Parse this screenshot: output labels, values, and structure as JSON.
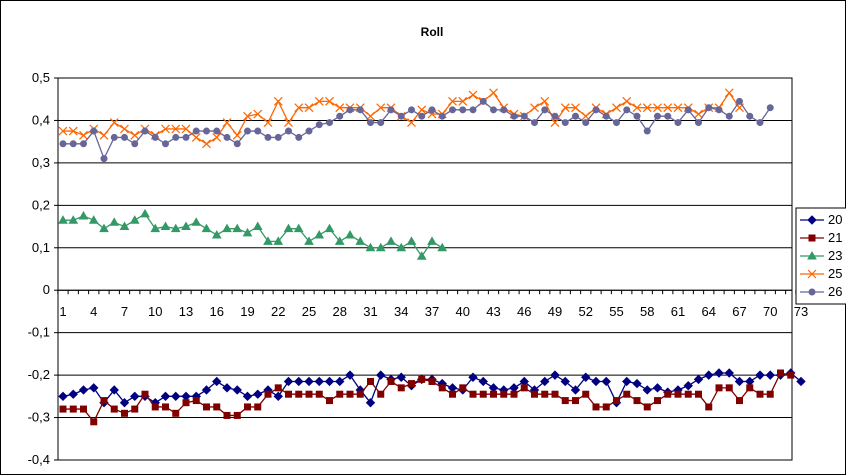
{
  "chart_data": {
    "type": "line",
    "title": "Roll",
    "xlabel": "",
    "ylabel": "",
    "ylim": [
      -0.4,
      0.5
    ],
    "y_ticks": [
      "0,5",
      "0,4",
      "0,3",
      "0,2",
      "0,1",
      "0",
      "-0,1",
      "-0,2",
      "-0,3",
      "-0,4"
    ],
    "y_tick_values": [
      0.5,
      0.4,
      0.3,
      0.2,
      0.1,
      0,
      -0.1,
      -0.2,
      -0.3,
      -0.4
    ],
    "x_tick_labels": [
      "1",
      "4",
      "7",
      "10",
      "13",
      "16",
      "19",
      "22",
      "25",
      "28",
      "31",
      "34",
      "37",
      "40",
      "43",
      "46",
      "49",
      "52",
      "55",
      "58",
      "61",
      "64",
      "67",
      "70",
      "73"
    ],
    "x_range": [
      1,
      73
    ],
    "grid": "horizontal",
    "legend_position": "right",
    "series": [
      {
        "name": "20",
        "color": "#000080",
        "marker": "diamond",
        "values": [
          -0.25,
          -0.245,
          -0.235,
          -0.23,
          -0.265,
          -0.235,
          -0.265,
          -0.25,
          -0.25,
          -0.265,
          -0.25,
          -0.25,
          -0.25,
          -0.25,
          -0.235,
          -0.215,
          -0.23,
          -0.235,
          -0.25,
          -0.245,
          -0.235,
          -0.25,
          -0.215,
          -0.215,
          -0.215,
          -0.215,
          -0.215,
          -0.215,
          -0.2,
          -0.235,
          -0.265,
          -0.2,
          -0.21,
          -0.205,
          -0.225,
          -0.21,
          -0.21,
          -0.22,
          -0.23,
          -0.235,
          -0.205,
          -0.215,
          -0.23,
          -0.235,
          -0.23,
          -0.215,
          -0.235,
          -0.215,
          -0.2,
          -0.215,
          -0.235,
          -0.205,
          -0.215,
          -0.215,
          -0.265,
          -0.215,
          -0.22,
          -0.235,
          -0.23,
          -0.24,
          -0.235,
          -0.225,
          -0.21,
          -0.2,
          -0.195,
          -0.195,
          -0.215,
          -0.215,
          -0.2,
          -0.2,
          -0.2,
          -0.195,
          -0.215
        ]
      },
      {
        "name": "21",
        "color": "#800000",
        "marker": "square",
        "values": [
          -0.28,
          -0.28,
          -0.28,
          -0.31,
          -0.26,
          -0.28,
          -0.29,
          -0.28,
          -0.245,
          -0.275,
          -0.275,
          -0.29,
          -0.265,
          -0.26,
          -0.275,
          -0.275,
          -0.295,
          -0.295,
          -0.275,
          -0.275,
          -0.245,
          -0.23,
          -0.245,
          -0.245,
          -0.245,
          -0.245,
          -0.26,
          -0.245,
          -0.245,
          -0.245,
          -0.215,
          -0.245,
          -0.215,
          -0.23,
          -0.22,
          -0.21,
          -0.215,
          -0.23,
          -0.245,
          -0.23,
          -0.245,
          -0.245,
          -0.245,
          -0.245,
          -0.245,
          -0.23,
          -0.245,
          -0.245,
          -0.245,
          -0.26,
          -0.26,
          -0.245,
          -0.275,
          -0.275,
          -0.26,
          -0.245,
          -0.26,
          -0.275,
          -0.26,
          -0.245,
          -0.245,
          -0.245,
          -0.245,
          -0.275,
          -0.23,
          -0.23,
          -0.26,
          -0.23,
          -0.245,
          -0.245,
          -0.195,
          -0.2
        ]
      },
      {
        "name": "23",
        "color": "#339966",
        "marker": "triangle",
        "values": [
          0.165,
          0.165,
          0.175,
          0.165,
          0.145,
          0.16,
          0.15,
          0.165,
          0.18,
          0.145,
          0.15,
          0.145,
          0.15,
          0.16,
          0.145,
          0.13,
          0.145,
          0.145,
          0.135,
          0.15,
          0.115,
          0.115,
          0.145,
          0.145,
          0.115,
          0.13,
          0.145,
          0.115,
          0.13,
          0.115,
          0.1,
          0.1,
          0.115,
          0.1,
          0.115,
          0.08,
          0.115,
          0.1
        ]
      },
      {
        "name": "25",
        "color": "#FF6600",
        "marker": "x",
        "values": [
          0.375,
          0.375,
          0.365,
          0.38,
          0.365,
          0.395,
          0.38,
          0.365,
          0.38,
          0.365,
          0.38,
          0.38,
          0.38,
          0.36,
          0.345,
          0.36,
          0.395,
          0.365,
          0.41,
          0.415,
          0.395,
          0.445,
          0.395,
          0.43,
          0.43,
          0.445,
          0.445,
          0.43,
          0.43,
          0.43,
          0.41,
          0.43,
          0.43,
          0.41,
          0.395,
          0.425,
          0.415,
          0.415,
          0.445,
          0.445,
          0.46,
          0.445,
          0.465,
          0.43,
          0.415,
          0.41,
          0.43,
          0.445,
          0.395,
          0.43,
          0.43,
          0.41,
          0.43,
          0.415,
          0.43,
          0.445,
          0.43,
          0.43,
          0.43,
          0.43,
          0.43,
          0.43,
          0.415,
          0.43,
          0.43,
          0.465,
          0.43
        ]
      },
      {
        "name": "26",
        "color": "#666699",
        "marker": "circle",
        "values": [
          0.345,
          0.345,
          0.345,
          0.375,
          0.31,
          0.36,
          0.36,
          0.345,
          0.375,
          0.36,
          0.345,
          0.36,
          0.36,
          0.375,
          0.375,
          0.375,
          0.36,
          0.345,
          0.375,
          0.375,
          0.36,
          0.36,
          0.375,
          0.36,
          0.375,
          0.39,
          0.395,
          0.41,
          0.425,
          0.425,
          0.395,
          0.395,
          0.425,
          0.41,
          0.425,
          0.41,
          0.425,
          0.41,
          0.425,
          0.425,
          0.425,
          0.445,
          0.425,
          0.425,
          0.41,
          0.41,
          0.395,
          0.425,
          0.41,
          0.395,
          0.41,
          0.395,
          0.425,
          0.41,
          0.395,
          0.425,
          0.41,
          0.375,
          0.41,
          0.41,
          0.395,
          0.425,
          0.395,
          0.43,
          0.425,
          0.41,
          0.445,
          0.41,
          0.395,
          0.43
        ]
      }
    ]
  }
}
